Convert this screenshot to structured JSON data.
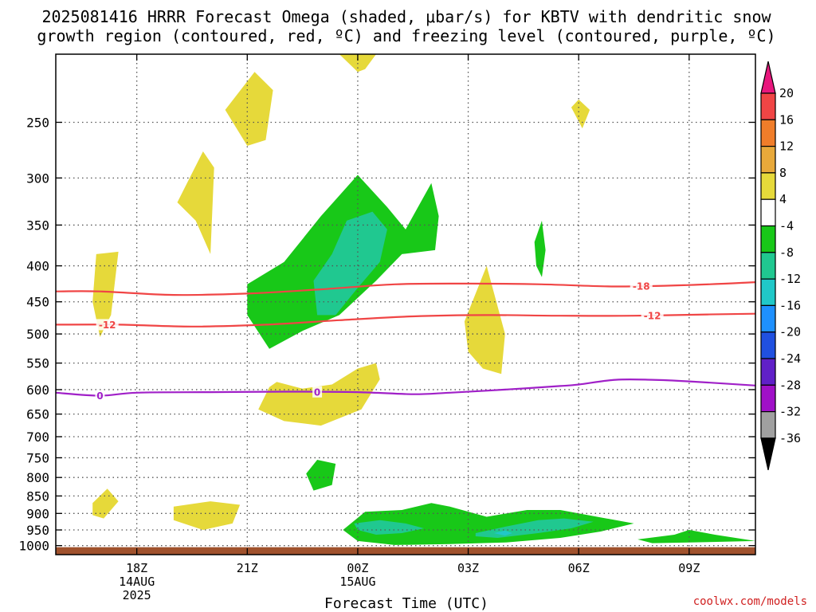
{
  "chart_data": {
    "type": "heatmap",
    "title_lines": [
      "2025081416 HRRR Forecast Omega (shaded, μbar/s) for KBTV with dendritic snow",
      "growth region (contoured, red, ºC) and freezing level (contoured, purple, ºC)"
    ],
    "xlabel": "Forecast Time (UTC)",
    "ylabel": "",
    "y_scale": "log-pressure (hPa)",
    "ylim": [
      1030,
      200
    ],
    "xlim_hours": [
      15.8,
      34.8
    ],
    "x_ticks": [
      {
        "h": 18,
        "lines": [
          "18Z",
          "14AUG",
          "2025"
        ]
      },
      {
        "h": 21,
        "lines": [
          "21Z"
        ]
      },
      {
        "h": 24,
        "lines": [
          "00Z",
          "15AUG"
        ]
      },
      {
        "h": 27,
        "lines": [
          "03Z"
        ]
      },
      {
        "h": 30,
        "lines": [
          "06Z"
        ]
      },
      {
        "h": 33,
        "lines": [
          "09Z"
        ]
      }
    ],
    "y_ticks": [
      250,
      300,
      350,
      400,
      450,
      500,
      550,
      600,
      650,
      700,
      750,
      800,
      850,
      900,
      950,
      1000
    ],
    "grid": true,
    "credit": "coolwx.com/models",
    "colorbar": {
      "levels": [
        20,
        16,
        12,
        8,
        4,
        -4,
        -8,
        -12,
        -16,
        -20,
        -24,
        -28,
        -32,
        -36
      ],
      "colors": [
        "#e8177d",
        "#f04545",
        "#f07d2a",
        "#e8a93a",
        "#e6d93a",
        "#ffffff",
        "#18c818",
        "#20c890",
        "#20c8c8",
        "#1e90ff",
        "#2050e0",
        "#6020c8",
        "#a010c8",
        "#a0a0a0",
        "#000000"
      ]
    },
    "surface_color": "#a0522d",
    "contours": [
      {
        "name": "-18",
        "color": "#f04545",
        "points": [
          [
            15.8,
            435
          ],
          [
            17,
            435
          ],
          [
            19,
            440
          ],
          [
            21,
            438
          ],
          [
            23,
            432
          ],
          [
            25,
            425
          ],
          [
            27,
            424
          ],
          [
            29,
            425
          ],
          [
            31,
            428
          ],
          [
            33,
            426
          ],
          [
            34.8,
            422
          ]
        ]
      },
      {
        "name": "-12",
        "color": "#f04545",
        "points": [
          [
            15.8,
            485
          ],
          [
            17.5,
            485
          ],
          [
            19.5,
            488
          ],
          [
            21.5,
            485
          ],
          [
            23.5,
            478
          ],
          [
            25.5,
            472
          ],
          [
            27.5,
            470
          ],
          [
            29.5,
            471
          ],
          [
            31.5,
            471
          ],
          [
            33.5,
            469
          ],
          [
            34.8,
            468
          ]
        ]
      },
      {
        "name": "0",
        "color": "#a020c8",
        "points": [
          [
            15.8,
            606
          ],
          [
            17,
            612
          ],
          [
            18,
            606
          ],
          [
            20,
            605
          ],
          [
            22,
            604
          ],
          [
            24,
            605
          ],
          [
            25.5,
            609
          ],
          [
            26.5,
            606
          ],
          [
            28,
            600
          ],
          [
            29.5,
            593
          ],
          [
            30,
            590
          ],
          [
            31,
            581
          ],
          [
            32,
            581
          ],
          [
            33,
            584
          ],
          [
            34.8,
            592
          ]
        ]
      }
    ],
    "regions": [
      {
        "level": "4 to 8",
        "color": "#e6d93a",
        "points": [
          [
            16.9,
            385
          ],
          [
            17.5,
            382
          ],
          [
            17.3,
            470
          ],
          [
            17.0,
            505
          ],
          [
            16.8,
            450
          ]
        ]
      },
      {
        "level": "4 to 8",
        "color": "#e6d93a",
        "points": [
          [
            19.1,
            325
          ],
          [
            19.8,
            275
          ],
          [
            20.1,
            290
          ],
          [
            20.0,
            385
          ],
          [
            19.6,
            345
          ]
        ]
      },
      {
        "level": "4 to 8",
        "color": "#e6d93a",
        "points": [
          [
            20.4,
            240
          ],
          [
            21.2,
            212
          ],
          [
            21.7,
            225
          ],
          [
            21.5,
            265
          ],
          [
            21.0,
            270
          ]
        ]
      },
      {
        "level": "4 to 8",
        "color": "#e6d93a",
        "points": [
          [
            23.5,
            200
          ],
          [
            24.5,
            200
          ],
          [
            24.2,
            210
          ],
          [
            24.0,
            212
          ]
        ]
      },
      {
        "level": "4 to 8",
        "color": "#e6d93a",
        "points": [
          [
            30.0,
            232
          ],
          [
            30.3,
            240
          ],
          [
            30.1,
            255
          ],
          [
            29.8,
            238
          ]
        ]
      },
      {
        "level": "4 to 8",
        "color": "#e6d93a",
        "points": [
          [
            26.9,
            480
          ],
          [
            27.5,
            400
          ],
          [
            28.0,
            500
          ],
          [
            27.9,
            570
          ],
          [
            27.4,
            560
          ],
          [
            27.0,
            530
          ]
        ]
      },
      {
        "level": "4 to 8",
        "color": "#e6d93a",
        "points": [
          [
            21.8,
            585
          ],
          [
            22.5,
            598
          ],
          [
            23.3,
            590
          ],
          [
            24.0,
            560
          ],
          [
            24.5,
            550
          ],
          [
            24.6,
            580
          ],
          [
            24.1,
            640
          ],
          [
            23.0,
            675
          ],
          [
            22.0,
            665
          ],
          [
            21.3,
            640
          ],
          [
            21.6,
            595
          ]
        ]
      },
      {
        "level": "4 to 8",
        "color": "#e6d93a",
        "points": [
          [
            16.8,
            870
          ],
          [
            17.2,
            830
          ],
          [
            17.5,
            865
          ],
          [
            17.1,
            915
          ],
          [
            16.8,
            905
          ]
        ]
      },
      {
        "level": "4 to 8",
        "color": "#e6d93a",
        "points": [
          [
            19.0,
            880
          ],
          [
            20.0,
            865
          ],
          [
            20.8,
            875
          ],
          [
            20.6,
            930
          ],
          [
            19.8,
            950
          ],
          [
            19.0,
            920
          ]
        ]
      },
      {
        "level": "-4 to -8",
        "color": "#18c818",
        "points": [
          [
            21.0,
            425
          ],
          [
            22.0,
            395
          ],
          [
            23.0,
            340
          ],
          [
            24.0,
            297
          ],
          [
            24.8,
            330
          ],
          [
            25.3,
            355
          ],
          [
            26.0,
            305
          ],
          [
            26.2,
            340
          ],
          [
            26.1,
            380
          ],
          [
            25.2,
            385
          ],
          [
            24.5,
            420
          ],
          [
            23.5,
            470
          ],
          [
            22.5,
            495
          ],
          [
            21.6,
            525
          ],
          [
            21.0,
            470
          ]
        ]
      },
      {
        "level": "-4 to -8",
        "color": "#18c818",
        "points": [
          [
            28.8,
            370
          ],
          [
            29.0,
            345
          ],
          [
            29.1,
            380
          ],
          [
            29.0,
            415
          ],
          [
            28.85,
            400
          ]
        ]
      },
      {
        "level": "-4 to -8",
        "color": "#18c818",
        "points": [
          [
            22.6,
            790
          ],
          [
            22.9,
            755
          ],
          [
            23.4,
            765
          ],
          [
            23.3,
            820
          ],
          [
            22.8,
            835
          ]
        ]
      },
      {
        "level": "-4 to -8",
        "color": "#18c818",
        "points": [
          [
            23.6,
            950
          ],
          [
            24.2,
            895
          ],
          [
            25.2,
            890
          ],
          [
            26.0,
            870
          ],
          [
            26.5,
            880
          ],
          [
            27.5,
            910
          ],
          [
            28.6,
            890
          ],
          [
            29.5,
            890
          ],
          [
            30.5,
            910
          ],
          [
            31.5,
            930
          ],
          [
            30.6,
            955
          ],
          [
            29.5,
            975
          ],
          [
            28.0,
            990
          ],
          [
            26.5,
            995
          ],
          [
            25.0,
            998
          ],
          [
            24.0,
            985
          ]
        ]
      },
      {
        "level": "-4 to -8",
        "color": "#18c818",
        "points": [
          [
            31.6,
            980
          ],
          [
            32.6,
            965
          ],
          [
            33.0,
            950
          ],
          [
            33.7,
            965
          ],
          [
            34.8,
            985
          ],
          [
            33.0,
            990
          ],
          [
            32.0,
            992
          ]
        ]
      },
      {
        "level": "-8 to -12",
        "color": "#20c890",
        "points": [
          [
            22.8,
            420
          ],
          [
            23.3,
            385
          ],
          [
            23.7,
            345
          ],
          [
            24.4,
            335
          ],
          [
            24.8,
            355
          ],
          [
            24.6,
            395
          ],
          [
            24.0,
            430
          ],
          [
            23.4,
            470
          ],
          [
            22.9,
            470
          ]
        ]
      },
      {
        "level": "-8 to -12",
        "color": "#20c890",
        "points": [
          [
            23.9,
            930
          ],
          [
            24.6,
            920
          ],
          [
            25.3,
            930
          ],
          [
            25.8,
            945
          ],
          [
            25.2,
            960
          ],
          [
            24.5,
            965
          ],
          [
            24.0,
            950
          ]
        ]
      },
      {
        "level": "-8 to -12",
        "color": "#20c890",
        "points": [
          [
            27.2,
            960
          ],
          [
            28.0,
            940
          ],
          [
            28.9,
            920
          ],
          [
            29.6,
            915
          ],
          [
            30.4,
            925
          ],
          [
            29.8,
            945
          ],
          [
            28.9,
            960
          ],
          [
            27.8,
            975
          ],
          [
            27.2,
            970
          ]
        ]
      },
      {
        "level": "-12 to -16",
        "color": "#20c8c8",
        "points": [
          [
            27.7,
            960
          ],
          [
            28.0,
            952
          ],
          [
            28.2,
            960
          ],
          [
            28.0,
            968
          ]
        ]
      }
    ]
  }
}
